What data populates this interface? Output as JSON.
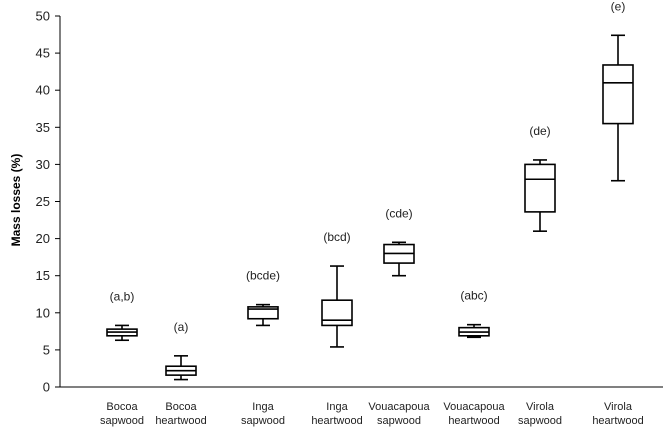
{
  "chart_data": {
    "type": "box",
    "ylabel": "Mass losses (%)",
    "ylim": [
      0,
      50
    ],
    "yticks": [
      0,
      5,
      10,
      15,
      20,
      25,
      30,
      35,
      40,
      45,
      50
    ],
    "grid": false,
    "categories": [
      [
        "Bocoa",
        "sapwood"
      ],
      [
        "Bocoa",
        "heartwood"
      ],
      [
        "Inga",
        "sapwood"
      ],
      [
        "Inga",
        "heartwood"
      ],
      [
        "Vouacapoua",
        "sapwood"
      ],
      [
        "Vouacapoua",
        "heartwood"
      ],
      [
        "Virola",
        "sapwood"
      ],
      [
        "Virola",
        "heartwood"
      ]
    ],
    "group_labels": [
      "(a,b)",
      "(a)",
      "(bcde)",
      "(bcd)",
      "(cde)",
      "(abc)",
      "(de)",
      "(e)"
    ],
    "boxes": [
      {
        "min": 6.3,
        "q1": 6.9,
        "median": 7.4,
        "q3": 7.8,
        "max": 8.3
      },
      {
        "min": 1.0,
        "q1": 1.6,
        "median": 2.2,
        "q3": 2.8,
        "max": 4.2
      },
      {
        "min": 8.3,
        "q1": 9.2,
        "median": 10.5,
        "q3": 10.8,
        "max": 11.1
      },
      {
        "min": 5.4,
        "q1": 8.3,
        "median": 9.0,
        "q3": 11.7,
        "max": 16.3
      },
      {
        "min": 15.0,
        "q1": 16.7,
        "median": 18.0,
        "q3": 19.2,
        "max": 19.5
      },
      {
        "min": 6.7,
        "q1": 6.9,
        "median": 7.4,
        "q3": 8.0,
        "max": 8.4
      },
      {
        "min": 21.0,
        "q1": 23.6,
        "median": 28.0,
        "q3": 30.0,
        "max": 30.6
      },
      {
        "min": 27.8,
        "q1": 35.5,
        "median": 41.0,
        "q3": 43.4,
        "max": 47.4
      }
    ]
  }
}
